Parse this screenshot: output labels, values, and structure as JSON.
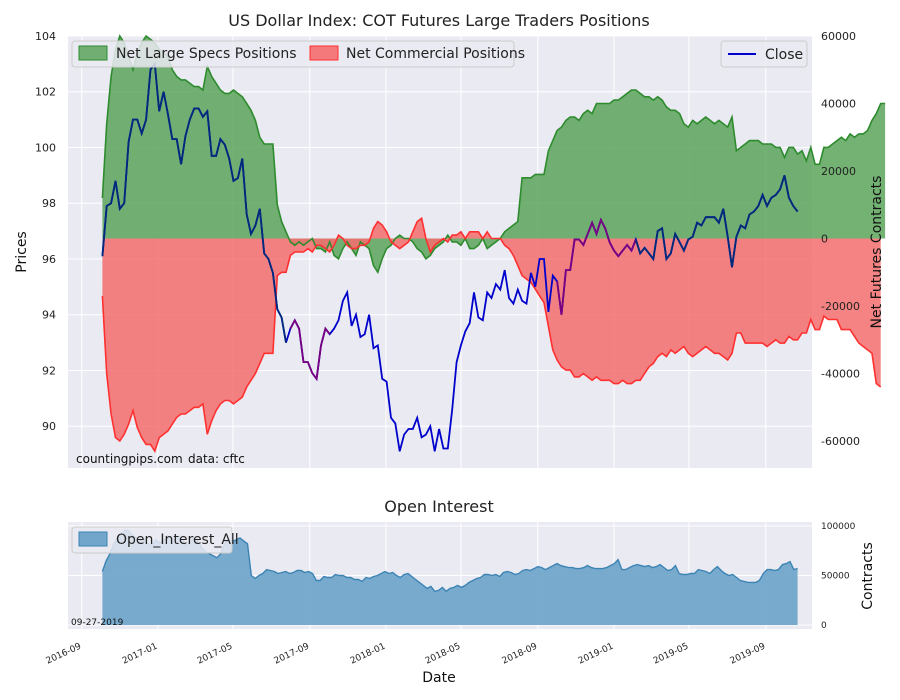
{
  "chart_data": [
    {
      "type": "area",
      "title": "US Dollar Index: COT Futures Large Traders Positions",
      "ylabel_left": "Prices",
      "ylabel_right": "Net Futures Contracts",
      "ylim_left": [
        88.5,
        104
      ],
      "ylim_right": [
        -68000,
        60000
      ],
      "yticks_left": [
        "90",
        "92",
        "94",
        "96",
        "98",
        "100",
        "102",
        "104"
      ],
      "yticks_right": [
        "-60000",
        "-40000",
        "-20000",
        "0",
        "20000",
        "40000",
        "60000"
      ],
      "legend_left": [
        "Net Large Specs Positions",
        "Net Commercial Positions"
      ],
      "legend_right": [
        "Close"
      ],
      "annotation_source": "countingpips.com",
      "annotation_data": "data: cftc",
      "colors": {
        "specs_fill": "#5aa55a",
        "specs_line": "#2e8b2e",
        "comm_fill": "#f46d6d",
        "comm_line": "#ff3030",
        "close": "#0000cc",
        "close_alt": "#7a0080",
        "close_dark": "#002a7a",
        "plot_bg": "#eaeaf2"
      },
      "x_start": "2016-10-04",
      "x_step_days": 7,
      "net_specs": [
        12000,
        34000,
        48000,
        56000,
        60000,
        58000,
        54000,
        50000,
        55000,
        58000,
        60000,
        59000,
        58000,
        56000,
        55000,
        54000,
        50000,
        48000,
        47000,
        47000,
        46000,
        45000,
        45000,
        44000,
        51000,
        48000,
        46000,
        44000,
        43000,
        43000,
        44000,
        43000,
        42000,
        40000,
        38000,
        35000,
        30000,
        28000,
        28000,
        28000,
        10000,
        5000,
        2000,
        -1000,
        -2000,
        -1000,
        -2000,
        -1000,
        0,
        -3000,
        -3000,
        -4000,
        -1000,
        -5000,
        -6000,
        -3000,
        -1000,
        -3000,
        -5000,
        -1000,
        -2000,
        -3000,
        -8000,
        -10000,
        -6000,
        -3000,
        -2000,
        0,
        1000,
        0,
        0,
        -1000,
        -3000,
        -4000,
        -6000,
        -5000,
        -3000,
        -2000,
        -1000,
        1000,
        -1000,
        -1000,
        -2000,
        0,
        -3000,
        -3000,
        -2000,
        0,
        -3000,
        -2000,
        -1000,
        0,
        2000,
        3000,
        4000,
        5000,
        18000,
        18000,
        18000,
        19000,
        19000,
        19000,
        26000,
        29000,
        32000,
        33000,
        35000,
        36000,
        36000,
        35000,
        37000,
        38000,
        37000,
        40000,
        40000,
        40000,
        40000,
        41000,
        41000,
        42000,
        43000,
        44000,
        44000,
        43000,
        42000,
        42000,
        41000,
        42000,
        41000,
        39000,
        38000,
        38000,
        37000,
        34000,
        33000,
        35000,
        34000,
        35000,
        36000,
        35000,
        34000,
        35000,
        34000,
        33000,
        36000,
        26000,
        27000,
        28000,
        29000,
        29000,
        29000,
        28000,
        28000,
        28000,
        27000,
        27000,
        24000,
        27000,
        27000,
        25000,
        26000,
        23000,
        27000,
        22000,
        22000,
        27000,
        27000,
        28000,
        29000,
        30000,
        29000,
        31000,
        30000,
        31000,
        31000,
        32000,
        35000,
        37000,
        40000,
        40000
      ],
      "net_commercial": [
        -17000,
        -40000,
        -52000,
        -59000,
        -60000,
        -58000,
        -55000,
        -51000,
        -56000,
        -59000,
        -61000,
        -61000,
        -63000,
        -59000,
        -58000,
        -57000,
        -55000,
        -53000,
        -52000,
        -52000,
        -51000,
        -50000,
        -50000,
        -49000,
        -58000,
        -54000,
        -51000,
        -49000,
        -48000,
        -48000,
        -49000,
        -48000,
        -47000,
        -44000,
        -42000,
        -40000,
        -37000,
        -34000,
        -34000,
        -34000,
        -11000,
        -10000,
        -10000,
        -5000,
        -4000,
        -4000,
        -4000,
        -3000,
        -4000,
        -2000,
        -2000,
        -3000,
        -4000,
        -2000,
        1000,
        0,
        -2000,
        -3000,
        -3000,
        -2000,
        -2000,
        -1000,
        3000,
        5000,
        4000,
        2000,
        -1000,
        -2000,
        -3000,
        -2000,
        -1000,
        2000,
        5000,
        6000,
        0,
        -4000,
        -2000,
        -1000,
        0,
        -1000,
        1000,
        1000,
        2000,
        0,
        2000,
        2000,
        2000,
        0,
        2000,
        0,
        0,
        0,
        -2000,
        -3000,
        -5000,
        -8000,
        -11000,
        -12000,
        -13000,
        -15000,
        -17000,
        -19000,
        -26000,
        -33000,
        -36000,
        -38000,
        -39000,
        -39000,
        -41000,
        -41000,
        -40000,
        -41000,
        -42000,
        -41000,
        -42000,
        -42000,
        -42000,
        -43000,
        -43000,
        -42000,
        -43000,
        -43000,
        -42000,
        -42000,
        -40000,
        -38000,
        -37000,
        -35000,
        -34000,
        -35000,
        -33000,
        -34000,
        -33000,
        -32000,
        -34000,
        -35000,
        -34000,
        -33000,
        -32000,
        -33000,
        -34000,
        -34000,
        -35000,
        -36000,
        -34000,
        -28000,
        -28000,
        -31000,
        -31000,
        -31000,
        -31000,
        -31000,
        -32000,
        -31000,
        -30000,
        -31000,
        -31000,
        -29000,
        -30000,
        -30000,
        -28000,
        -28000,
        -24000,
        -27000,
        -27000,
        -23000,
        -24000,
        -24000,
        -24000,
        -27000,
        -27000,
        -27000,
        -29000,
        -31000,
        -32000,
        -33000,
        -34000,
        -43000,
        -44000
      ],
      "close": [
        96.1,
        97.9,
        98.0,
        98.8,
        97.8,
        98.0,
        100.2,
        101.0,
        101.0,
        100.5,
        101.0,
        102.8,
        103.0,
        101.3,
        102.0,
        101.2,
        100.3,
        100.3,
        99.4,
        100.4,
        101.0,
        101.4,
        101.4,
        101.1,
        101.3,
        99.7,
        99.7,
        100.3,
        100.1,
        99.6,
        98.8,
        98.9,
        99.6,
        97.6,
        96.9,
        97.2,
        97.8,
        96.2,
        96.0,
        95.5,
        94.2,
        93.9,
        93.0,
        93.5,
        93.8,
        93.5,
        92.3,
        92.3,
        91.9,
        91.7,
        92.9,
        93.5,
        93.3,
        93.5,
        93.8,
        94.5,
        94.8,
        93.6,
        94.0,
        93.2,
        93.3,
        94.0,
        92.8,
        92.9,
        91.7,
        91.6,
        90.3,
        90.1,
        89.1,
        89.7,
        89.9,
        89.9,
        90.3,
        89.6,
        89.7,
        90.0,
        89.1,
        89.9,
        89.2,
        89.2,
        90.6,
        92.3,
        92.9,
        93.4,
        93.7,
        94.8,
        93.9,
        93.8,
        94.8,
        94.6,
        95.1,
        94.9,
        95.6,
        94.6,
        94.4,
        94.9,
        94.5,
        94.4,
        95.5,
        95.0,
        96.0,
        96.0,
        94.1,
        95.4,
        95.2,
        94.0,
        95.6,
        95.6,
        96.7,
        96.7,
        96.5,
        96.9,
        97.3,
        96.9,
        97.4,
        97.1,
        96.6,
        96.3,
        96.1,
        96.3,
        96.5,
        96.3,
        96.7,
        96.2,
        96.4,
        96.2,
        96.0,
        97.0,
        97.1,
        96.0,
        96.2,
        96.9,
        96.6,
        96.3,
        96.7,
        96.8,
        97.3,
        97.2,
        97.5,
        97.5,
        97.5,
        97.3,
        97.8,
        96.8,
        95.7,
        96.8,
        97.2,
        97.1,
        97.6,
        97.7,
        97.9,
        98.3,
        97.9,
        98.2,
        98.3,
        98.5,
        99.0,
        98.2,
        97.9,
        97.7
      ],
      "close_alt_ranges": [
        [
          43,
          52
        ],
        [
          104,
          122
        ]
      ]
    },
    {
      "type": "area",
      "title": "Open Interest",
      "xlabel": "Date",
      "ylabel": "Contracts",
      "ylim": [
        0,
        100000
      ],
      "yticks": [
        "0",
        "50000",
        "100000"
      ],
      "legend": [
        "Open_Interest_All"
      ],
      "date_note": "09-27-2019",
      "xticks": [
        "2016-09",
        "2017-01",
        "2017-05",
        "2017-09",
        "2018-01",
        "2018-05",
        "2018-09",
        "2019-01",
        "2019-05",
        "2019-09"
      ],
      "colors": {
        "fill": "#72a6cb",
        "line": "#3c84b4"
      },
      "open_interest": [
        54000,
        65000,
        72000,
        82000,
        88000,
        92000,
        96000,
        95000,
        90000,
        88000,
        85000,
        87000,
        82000,
        80000,
        86000,
        83000,
        85000,
        90000,
        88000,
        86000,
        90000,
        86000,
        80000,
        84000,
        88000,
        85000,
        78000,
        74000,
        72000,
        70000,
        68000,
        72000,
        82000,
        86000,
        84000,
        86000,
        88000,
        85000,
        82000,
        50000,
        47000,
        50000,
        52000,
        56000,
        55000,
        54000,
        52000,
        53000,
        54000,
        52000,
        53000,
        55000,
        55000,
        53000,
        54000,
        52000,
        45000,
        45000,
        49000,
        48000,
        48000,
        51000,
        50000,
        50000,
        48000,
        48000,
        46000,
        46000,
        44000,
        48000,
        47000,
        49000,
        50000,
        52000,
        54000,
        52000,
        53000,
        50000,
        48000,
        51000,
        52000,
        49000,
        46000,
        43000,
        40000,
        37000,
        39000,
        34000,
        35000,
        38000,
        34000,
        37000,
        38000,
        40000,
        38000,
        40000,
        43000,
        45000,
        47000,
        48000,
        51000,
        51000,
        50000,
        51000,
        49000,
        53000,
        54000,
        53000,
        51000,
        52000,
        55000,
        56000,
        55000,
        57000,
        59000,
        58000,
        56000,
        58000,
        60000,
        62000,
        60000,
        59000,
        58000,
        58000,
        57000,
        57000,
        58000,
        60000,
        58000,
        57000,
        57000,
        57000,
        58000,
        60000,
        62000,
        66000,
        56000,
        56000,
        58000,
        60000,
        61000,
        60000,
        59000,
        60000,
        58000,
        59000,
        61000,
        58000,
        55000,
        56000,
        60000,
        52000,
        51000,
        51000,
        52000,
        52000,
        56000,
        55000,
        54000,
        52000,
        56000,
        59000,
        55000,
        52000,
        50000,
        51000,
        48000,
        45000,
        44000,
        43000,
        43000,
        43000,
        45000,
        52000,
        56000,
        56000,
        55000,
        56000,
        61000,
        62000,
        64000,
        56000,
        57000
      ]
    }
  ]
}
